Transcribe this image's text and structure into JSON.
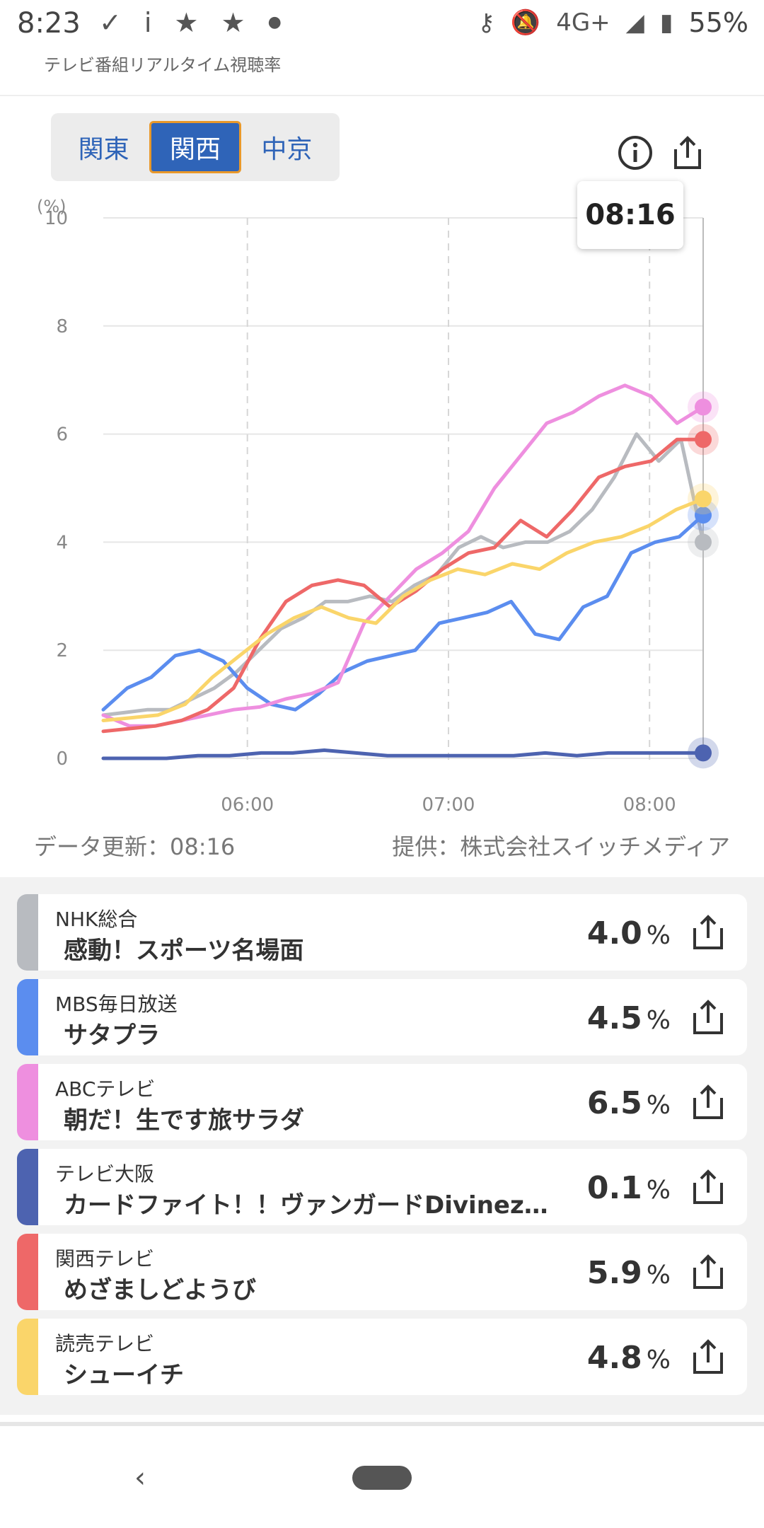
{
  "status_bar": {
    "time": "8:23",
    "left_icons": [
      "check-download-icon",
      "signal-arrow-icon",
      "star-icon",
      "star-icon",
      "dot-icon"
    ],
    "network": "4G+",
    "battery": "55%"
  },
  "app_title": "テレビ番組リアルタイム視聴率",
  "region_tabs": [
    {
      "label": "関東",
      "active": false
    },
    {
      "label": "関西",
      "active": true
    },
    {
      "label": "中京",
      "active": false
    }
  ],
  "tooltip_time": "08:16",
  "chart_data": {
    "type": "line",
    "ylabel": "(%)",
    "ylim": [
      0,
      10
    ],
    "yticks": [
      "0",
      "2",
      "4",
      "6",
      "8",
      "10"
    ],
    "xticks": [
      "06:00",
      "07:00",
      "08:00"
    ],
    "xrange": [
      "05:17",
      "08:16"
    ],
    "series": [
      {
        "name": "NHK総合",
        "color": "#b8bbc0",
        "values": [
          0.8,
          0.85,
          0.9,
          0.9,
          1.1,
          1.3,
          1.6,
          2.0,
          2.4,
          2.6,
          2.9,
          2.9,
          3.0,
          2.9,
          3.2,
          3.4,
          3.9,
          4.1,
          3.9,
          4.0,
          4.0,
          4.2,
          4.6,
          5.2,
          6.0,
          5.5,
          5.9,
          4.0
        ]
      },
      {
        "name": "MBS毎日放送",
        "color": "#5b8def",
        "values": [
          0.9,
          1.3,
          1.5,
          1.9,
          2.0,
          1.8,
          1.3,
          1.0,
          0.9,
          1.2,
          1.6,
          1.8,
          1.9,
          2.0,
          2.5,
          2.6,
          2.7,
          2.9,
          2.3,
          2.2,
          2.8,
          3.0,
          3.8,
          4.0,
          4.1,
          4.5
        ]
      },
      {
        "name": "ABCテレビ",
        "color": "#ee8fdf",
        "values": [
          0.8,
          0.6,
          0.6,
          0.7,
          0.8,
          0.9,
          0.95,
          1.1,
          1.2,
          1.4,
          2.5,
          3.0,
          3.5,
          3.8,
          4.2,
          5.0,
          5.6,
          6.2,
          6.4,
          6.7,
          6.9,
          6.7,
          6.2,
          6.5
        ]
      },
      {
        "name": "テレビ大阪",
        "color": "#4d63b0",
        "values": [
          0.0,
          0.0,
          0.0,
          0.05,
          0.05,
          0.1,
          0.1,
          0.15,
          0.1,
          0.05,
          0.05,
          0.05,
          0.05,
          0.05,
          0.1,
          0.05,
          0.1,
          0.1,
          0.1,
          0.1
        ]
      },
      {
        "name": "関西テレビ",
        "color": "#ee6868",
        "values": [
          0.5,
          0.55,
          0.6,
          0.7,
          0.9,
          1.3,
          2.2,
          2.9,
          3.2,
          3.3,
          3.2,
          2.8,
          3.1,
          3.5,
          3.8,
          3.9,
          4.4,
          4.1,
          4.6,
          5.2,
          5.4,
          5.5,
          5.9,
          5.9
        ]
      },
      {
        "name": "読売テレビ",
        "color": "#fad56a",
        "values": [
          0.7,
          0.75,
          0.8,
          1.0,
          1.5,
          1.9,
          2.3,
          2.6,
          2.8,
          2.6,
          2.5,
          3.0,
          3.3,
          3.5,
          3.4,
          3.6,
          3.5,
          3.8,
          4.0,
          4.1,
          4.3,
          4.6,
          4.8
        ]
      }
    ]
  },
  "footer": {
    "updated": "データ更新：08:16",
    "provider": "提供：株式会社スイッチメディア"
  },
  "channels": [
    {
      "channel": "NHK総合",
      "program": "感動！スポーツ名場面",
      "rating": "4.0",
      "unit": "%",
      "color": "#b8bbc0"
    },
    {
      "channel": "MBS毎日放送",
      "program": "サタプラ",
      "rating": "4.5",
      "unit": "%",
      "color": "#5b8def"
    },
    {
      "channel": "ABCテレビ",
      "program": "朝だ！生です旅サラダ",
      "rating": "6.5",
      "unit": "%",
      "color": "#ee8fdf"
    },
    {
      "channel": "テレビ大阪",
      "program": "カードファイト！！ヴァンガードDivinez…",
      "rating": "0.1",
      "unit": "%",
      "color": "#4d63b0"
    },
    {
      "channel": "関西テレビ",
      "program": "めざましどようび",
      "rating": "5.9",
      "unit": "%",
      "color": "#ee6868"
    },
    {
      "channel": "読売テレビ",
      "program": "シューイチ",
      "rating": "4.8",
      "unit": "%",
      "color": "#fad56a"
    }
  ]
}
